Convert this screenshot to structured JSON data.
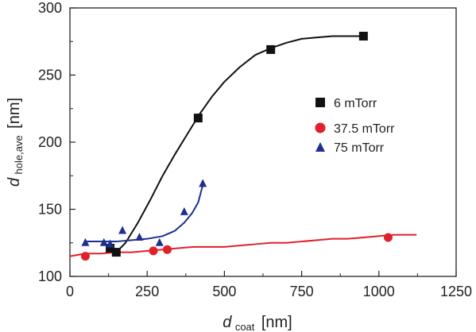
{
  "chart_data": {
    "type": "scatter",
    "title": "",
    "xlabel": {
      "symbol": "d",
      "subscript": "coat",
      "unit": "[nm]"
    },
    "ylabel": {
      "symbol": "d",
      "subscript": "hole,ave",
      "unit": "[nm]"
    },
    "xlim": [
      0,
      1250
    ],
    "ylim": [
      100,
      300
    ],
    "x_ticks": [
      0,
      250,
      500,
      750,
      1000,
      1250
    ],
    "y_ticks": [
      100,
      150,
      200,
      250,
      300
    ],
    "x_tick_labels": [
      "0",
      "250",
      "500",
      "750",
      "1000",
      "1250"
    ],
    "y_tick_labels": [
      "100",
      "150",
      "200",
      "250",
      "300"
    ],
    "grid": false,
    "legend_position": "right-middle",
    "series": [
      {
        "name": "6 mTorr",
        "marker": "square",
        "color": "#111111",
        "points": [
          [
            130,
            121
          ],
          [
            150,
            118
          ],
          [
            415,
            218
          ],
          [
            650,
            269
          ],
          [
            950,
            279
          ]
        ],
        "fit": [
          [
            130,
            120
          ],
          [
            150,
            118
          ],
          [
            180,
            125
          ],
          [
            220,
            140
          ],
          [
            260,
            157
          ],
          [
            300,
            175
          ],
          [
            340,
            191
          ],
          [
            380,
            206
          ],
          [
            420,
            221
          ],
          [
            460,
            234
          ],
          [
            500,
            245
          ],
          [
            550,
            256
          ],
          [
            600,
            265
          ],
          [
            650,
            270
          ],
          [
            700,
            274
          ],
          [
            750,
            277
          ],
          [
            800,
            278
          ],
          [
            850,
            279
          ],
          [
            900,
            279
          ],
          [
            950,
            279
          ]
        ]
      },
      {
        "name": "37.5 mTorr",
        "marker": "circle",
        "color": "#e0202a",
        "points": [
          [
            50,
            115
          ],
          [
            270,
            119
          ],
          [
            315,
            120
          ],
          [
            1030,
            129
          ]
        ],
        "fit": [
          [
            0,
            115
          ],
          [
            50,
            117
          ],
          [
            100,
            117
          ],
          [
            150,
            118
          ],
          [
            200,
            118
          ],
          [
            250,
            119
          ],
          [
            300,
            120
          ],
          [
            350,
            121
          ],
          [
            400,
            122
          ],
          [
            450,
            122
          ],
          [
            500,
            122
          ],
          [
            550,
            123
          ],
          [
            600,
            124
          ],
          [
            650,
            125
          ],
          [
            700,
            125
          ],
          [
            750,
            126
          ],
          [
            800,
            127
          ],
          [
            850,
            128
          ],
          [
            900,
            128
          ],
          [
            950,
            129
          ],
          [
            1000,
            130
          ],
          [
            1050,
            131
          ],
          [
            1100,
            131
          ],
          [
            1120,
            131
          ]
        ]
      },
      {
        "name": "75 mTorr",
        "marker": "triangle",
        "color": "#1f2f8f",
        "points": [
          [
            50,
            125
          ],
          [
            110,
            125
          ],
          [
            130,
            124
          ],
          [
            170,
            134
          ],
          [
            225,
            129
          ],
          [
            290,
            125
          ],
          [
            370,
            148
          ],
          [
            430,
            169
          ]
        ],
        "fit": [
          [
            50,
            126
          ],
          [
            100,
            126
          ],
          [
            150,
            126
          ],
          [
            200,
            127
          ],
          [
            250,
            128
          ],
          [
            300,
            130
          ],
          [
            340,
            134
          ],
          [
            370,
            140
          ],
          [
            395,
            147
          ],
          [
            415,
            155
          ],
          [
            430,
            168
          ]
        ]
      }
    ]
  }
}
